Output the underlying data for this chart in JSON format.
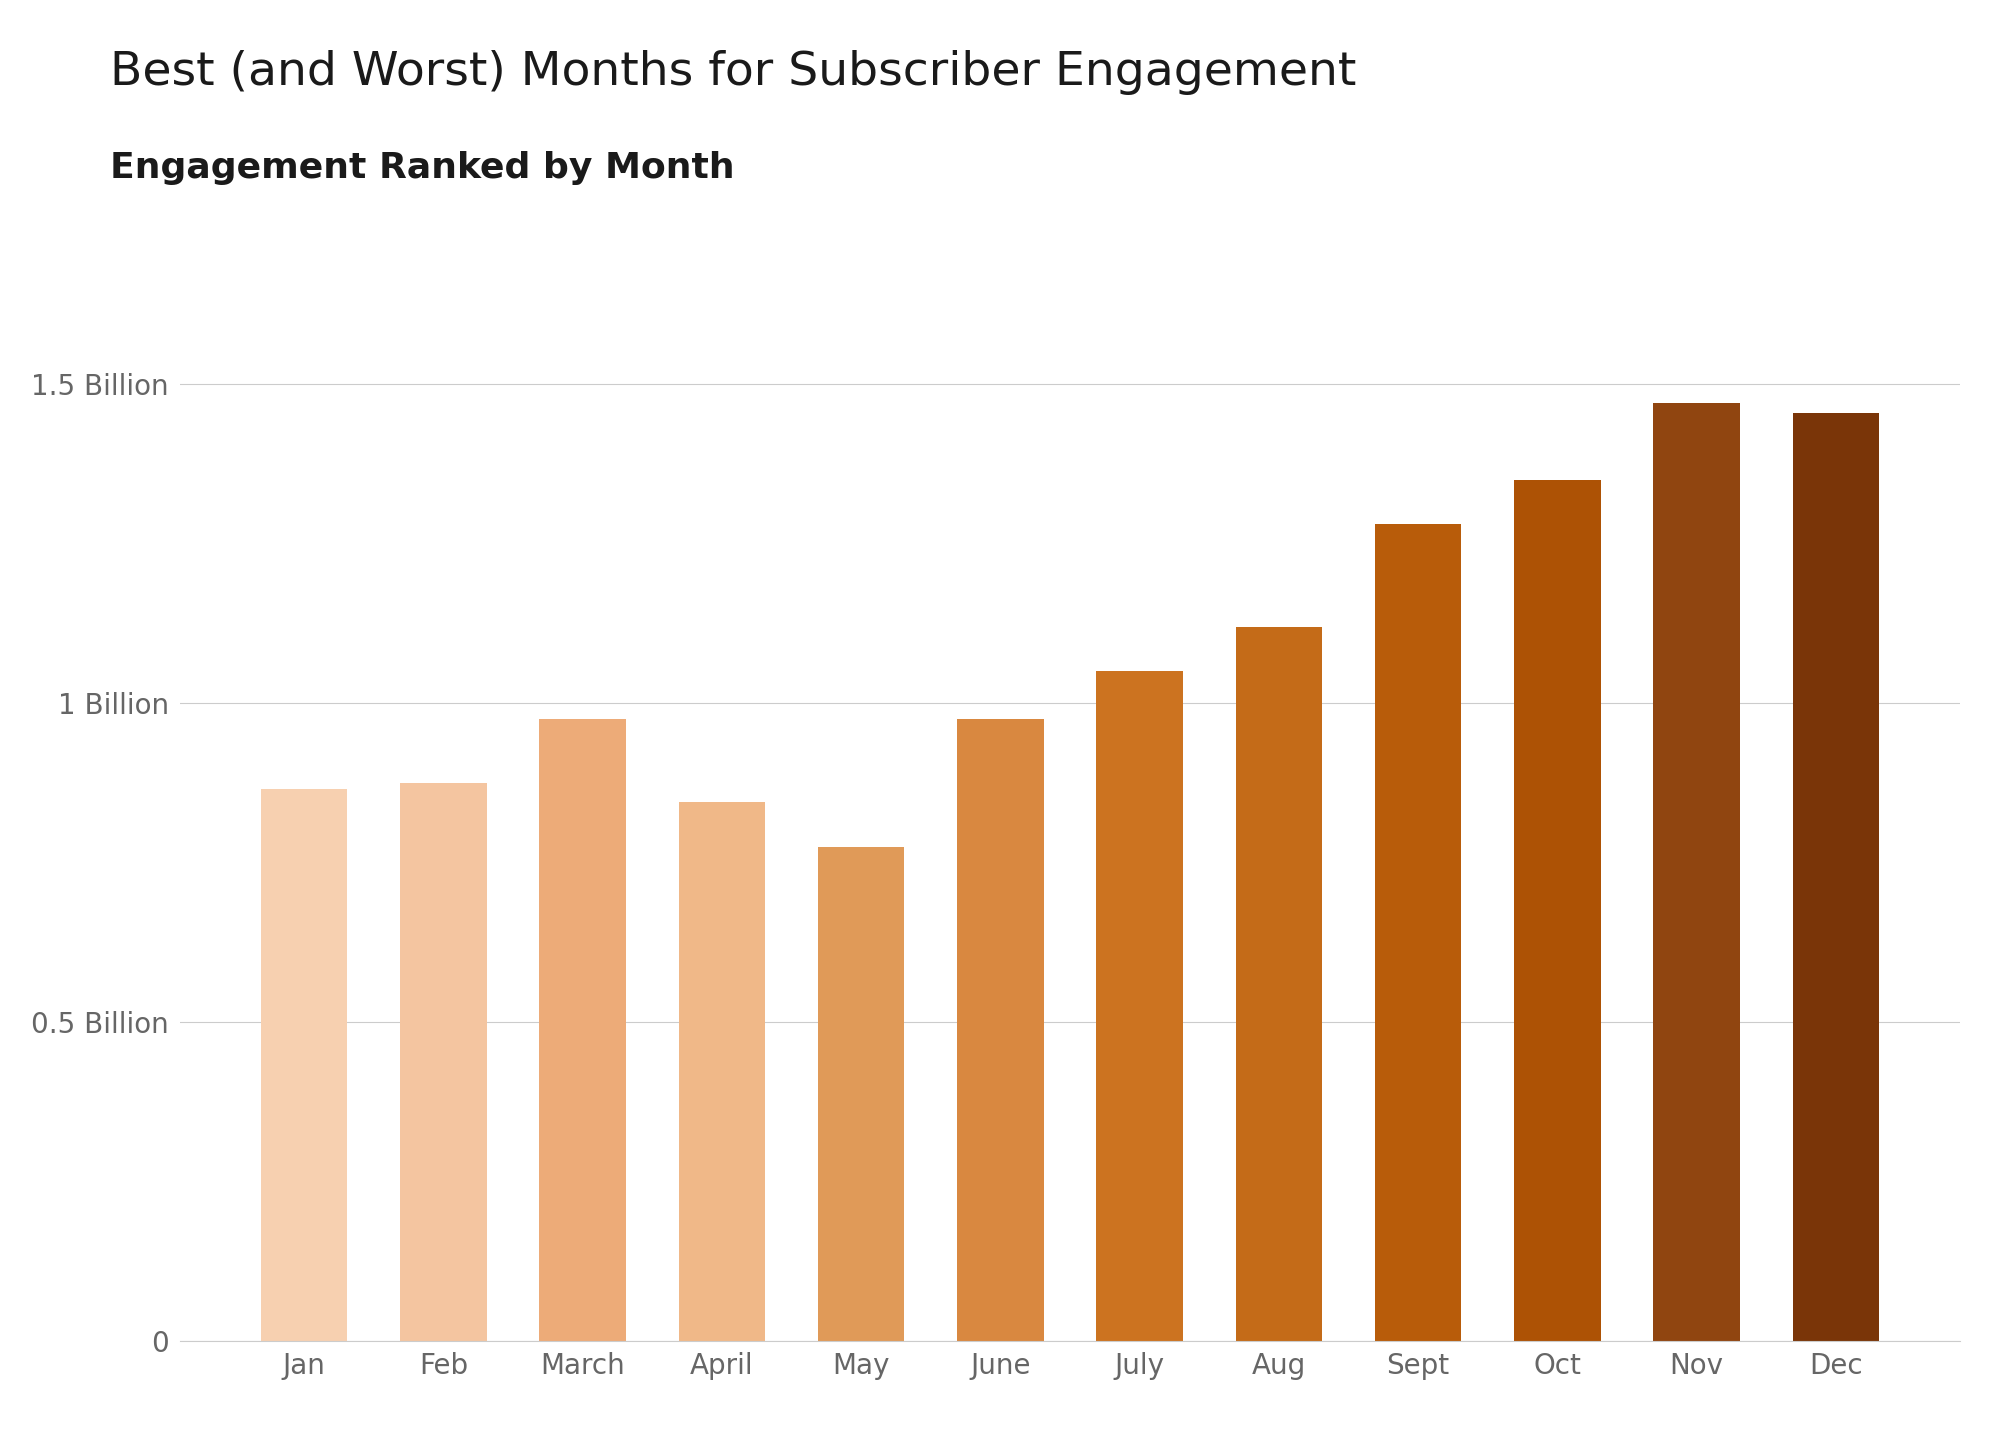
{
  "title": "Best (and Worst) Months for Subscriber Engagement",
  "subtitle": "Engagement Ranked by Month",
  "categories": [
    "Jan",
    "Feb",
    "March",
    "April",
    "May",
    "June",
    "July",
    "Aug",
    "Sept",
    "Oct",
    "Nov",
    "Dec"
  ],
  "values": [
    0.865,
    0.875,
    0.975,
    0.845,
    0.775,
    0.975,
    1.05,
    1.12,
    1.28,
    1.35,
    1.47,
    1.455
  ],
  "bar_colors": [
    "#F7D0B0",
    "#F4C5A0",
    "#EDAB78",
    "#F0B888",
    "#E09A58",
    "#D98840",
    "#CC7320",
    "#C46B18",
    "#B85C0A",
    "#AD5205",
    "#904510",
    "#7A3508"
  ],
  "background_color": "#ffffff",
  "title_fontsize": 34,
  "subtitle_fontsize": 26,
  "tick_label_fontsize": 20,
  "ytick_labels": [
    "0",
    "0.5 Billion",
    "1 Billion",
    "1.5 Billion"
  ],
  "ytick_values": [
    0,
    0.5,
    1.0,
    1.5
  ],
  "ylim": [
    0,
    1.65
  ],
  "grid_color": "#cccccc",
  "title_color": "#1a1a1a",
  "subtitle_color": "#1a1a1a",
  "tick_color": "#666666",
  "bar_width": 0.62
}
